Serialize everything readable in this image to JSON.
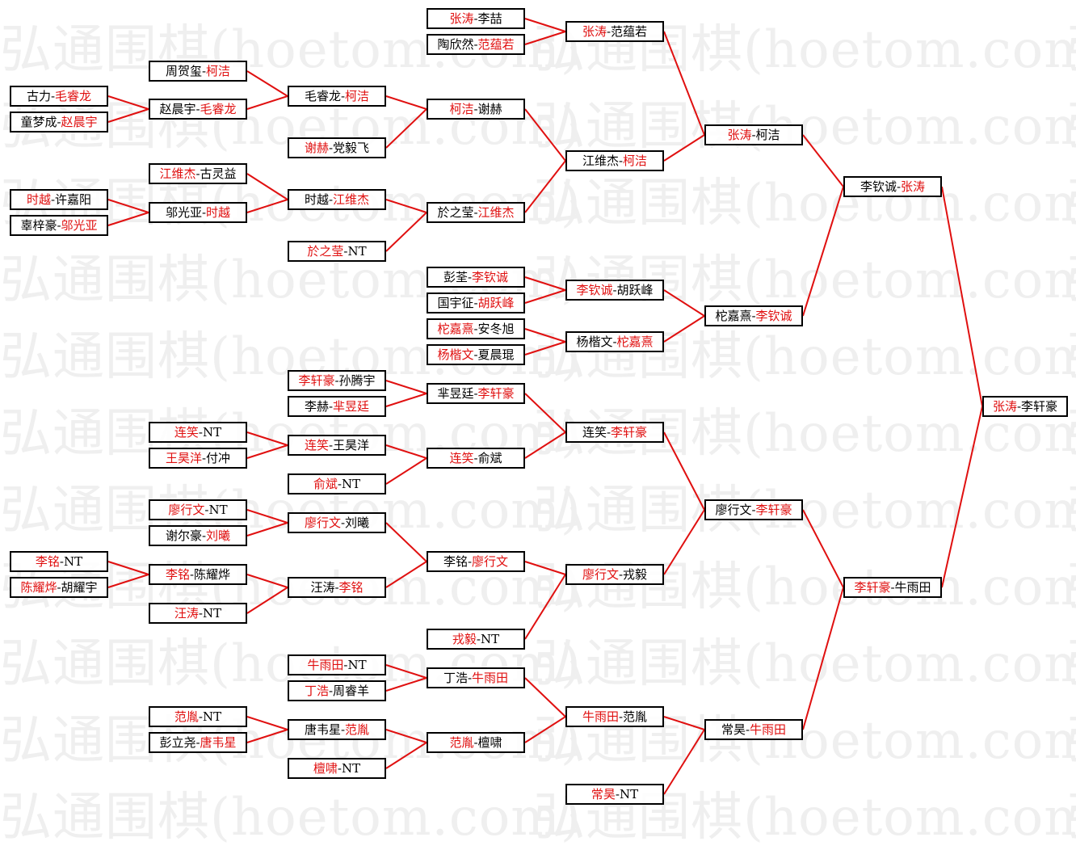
{
  "watermark": {
    "text": "弘通围棋(hoetom.com)"
  },
  "colors": {
    "winner": "#e01010",
    "line": "#e01010",
    "border": "#000000"
  },
  "separator": "-",
  "matches": [
    {
      "p": [
        "古力",
        "毛睿龙"
      ],
      "w": 1,
      "next": 7
    },
    {
      "p": [
        "童梦成",
        "赵晨宇"
      ],
      "w": 1,
      "next": 7
    },
    {
      "p": [
        "时越",
        "许嘉阳"
      ],
      "w": 0,
      "next": 9
    },
    {
      "p": [
        "辜梓豪",
        "邬光亚"
      ],
      "w": 1,
      "next": 9
    },
    {
      "p": [
        "李铭",
        "NT"
      ],
      "w": 0,
      "next": 14
    },
    {
      "p": [
        "陈耀烨",
        "胡耀宇"
      ],
      "w": 0,
      "next": 14
    },
    {
      "p": [
        "周贺玺",
        "柯洁"
      ],
      "w": 1,
      "next": 18
    },
    {
      "p": [
        "赵晨宇",
        "毛睿龙"
      ],
      "w": 1,
      "next": 18
    },
    {
      "p": [
        "江维杰",
        "古灵益"
      ],
      "w": 0,
      "next": 20
    },
    {
      "p": [
        "邬光亚",
        "时越"
      ],
      "w": 1,
      "next": 20
    },
    {
      "p": [
        "连笑",
        "NT"
      ],
      "w": 0,
      "next": 24
    },
    {
      "p": [
        "王昊洋",
        "付冲"
      ],
      "w": 0,
      "next": 24
    },
    {
      "p": [
        "廖行文",
        "NT"
      ],
      "w": 0,
      "next": 26
    },
    {
      "p": [
        "谢尔豪",
        "刘曦"
      ],
      "w": 1,
      "next": 26
    },
    {
      "p": [
        "李铭",
        "陈耀烨"
      ],
      "w": 0,
      "next": 27
    },
    {
      "p": [
        "汪涛",
        "NT"
      ],
      "w": 0,
      "next": 27
    },
    {
      "p": [
        "范胤",
        "NT"
      ],
      "w": 0,
      "next": 30
    },
    {
      "p": [
        "彭立尧",
        "唐韦星"
      ],
      "w": 1,
      "next": 30
    },
    {
      "p": [
        "毛睿龙",
        "柯洁"
      ],
      "w": 1,
      "next": 34
    },
    {
      "p": [
        "谢赫",
        "党毅飞"
      ],
      "w": 0,
      "next": 34
    },
    {
      "p": [
        "时越",
        "江维杰"
      ],
      "w": 1,
      "next": 35
    },
    {
      "p": [
        "於之莹",
        "NT"
      ],
      "w": 0,
      "next": 35
    },
    {
      "p": [
        "李轩豪",
        "孙腾宇"
      ],
      "w": 0,
      "next": 40
    },
    {
      "p": [
        "李赫",
        "芈昱廷"
      ],
      "w": 1,
      "next": 40
    },
    {
      "p": [
        "连笑",
        "王昊洋"
      ],
      "w": 0,
      "next": 41
    },
    {
      "p": [
        "俞斌",
        "NT"
      ],
      "w": 0,
      "next": 41
    },
    {
      "p": [
        "廖行文",
        "刘曦"
      ],
      "w": 0,
      "next": 42
    },
    {
      "p": [
        "汪涛",
        "李铭"
      ],
      "w": 1,
      "next": 42
    },
    {
      "p": [
        "牛雨田",
        "NT"
      ],
      "w": 0,
      "next": 44
    },
    {
      "p": [
        "丁浩",
        "周睿羊"
      ],
      "w": 0,
      "next": 44
    },
    {
      "p": [
        "唐韦星",
        "范胤"
      ],
      "w": 1,
      "next": 45
    },
    {
      "p": [
        "檀啸",
        "NT"
      ],
      "w": 0,
      "next": 45
    },
    {
      "p": [
        "张涛",
        "李喆"
      ],
      "w": 0,
      "next": 46
    },
    {
      "p": [
        "陶欣然",
        "范蕴若"
      ],
      "w": 1,
      "next": 46
    },
    {
      "p": [
        "柯洁",
        "谢赫"
      ],
      "w": 0,
      "next": 47
    },
    {
      "p": [
        "於之莹",
        "江维杰"
      ],
      "w": 1,
      "next": 47
    },
    {
      "p": [
        "彭荃",
        "李钦诚"
      ],
      "w": 1,
      "next": 48
    },
    {
      "p": [
        "国宇征",
        "胡跃峰"
      ],
      "w": 1,
      "next": 48
    },
    {
      "p": [
        "柁嘉熹",
        "安冬旭"
      ],
      "w": 0,
      "next": 49
    },
    {
      "p": [
        "杨楷文",
        "夏晨琨"
      ],
      "w": 0,
      "next": 49
    },
    {
      "p": [
        "芈昱廷",
        "李轩豪"
      ],
      "w": 1,
      "next": 50
    },
    {
      "p": [
        "连笑",
        "俞斌"
      ],
      "w": 0,
      "next": 50
    },
    {
      "p": [
        "李铭",
        "廖行文"
      ],
      "w": 1,
      "next": 51
    },
    {
      "p": [
        "戎毅",
        "NT"
      ],
      "w": 0,
      "next": 51
    },
    {
      "p": [
        "丁浩",
        "牛雨田"
      ],
      "w": 1,
      "next": 52
    },
    {
      "p": [
        "范胤",
        "檀啸"
      ],
      "w": 0,
      "next": 52
    },
    {
      "p": [
        "张涛",
        "范蕴若"
      ],
      "w": 0,
      "next": 54
    },
    {
      "p": [
        "江维杰",
        "柯洁"
      ],
      "w": 1,
      "next": 54
    },
    {
      "p": [
        "李钦诚",
        "胡跃峰"
      ],
      "w": 0,
      "next": 55
    },
    {
      "p": [
        "杨楷文",
        "柁嘉熹"
      ],
      "w": 1,
      "next": 55
    },
    {
      "p": [
        "连笑",
        "李轩豪"
      ],
      "w": 1,
      "next": 56
    },
    {
      "p": [
        "廖行文",
        "戎毅"
      ],
      "w": 0,
      "next": 56
    },
    {
      "p": [
        "牛雨田",
        "范胤"
      ],
      "w": 0,
      "next": 57
    },
    {
      "p": [
        "常昊",
        "NT"
      ],
      "w": 0,
      "next": 57
    },
    {
      "p": [
        "张涛",
        "柯洁"
      ],
      "w": 0,
      "next": 58
    },
    {
      "p": [
        "柁嘉熹",
        "李钦诚"
      ],
      "w": 1,
      "next": 58
    },
    {
      "p": [
        "廖行文",
        "李轩豪"
      ],
      "w": 1,
      "next": 59
    },
    {
      "p": [
        "常昊",
        "牛雨田"
      ],
      "w": 1,
      "next": 59
    },
    {
      "p": [
        "李钦诚",
        "张涛"
      ],
      "w": 1,
      "next": 60
    },
    {
      "p": [
        "李轩豪",
        "牛雨田"
      ],
      "w": 0,
      "next": 60
    },
    {
      "p": [
        "张涛",
        "李轩豪"
      ],
      "w": 0,
      "next": null
    }
  ]
}
